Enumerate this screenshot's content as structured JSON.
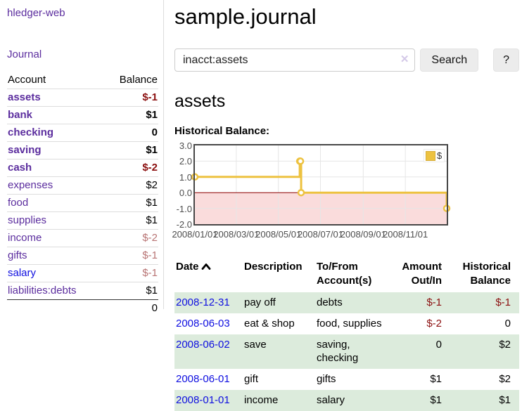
{
  "app": {
    "title": "hledger-web"
  },
  "sidebar": {
    "journal_link": "Journal",
    "accounts_table": {
      "headers": {
        "account": "Account",
        "balance": "Balance"
      },
      "rows": [
        {
          "account": "assets",
          "balance": "$-1"
        },
        {
          "account": "bank",
          "balance": "$1"
        },
        {
          "account": "checking",
          "balance": "0"
        },
        {
          "account": "saving",
          "balance": "$1"
        },
        {
          "account": "cash",
          "balance": "$-2"
        },
        {
          "account": "expenses",
          "balance": "$2"
        },
        {
          "account": "food",
          "balance": "$1"
        },
        {
          "account": "supplies",
          "balance": "$1"
        },
        {
          "account": "income",
          "balance": "$-2"
        },
        {
          "account": "gifts",
          "balance": "$-1"
        },
        {
          "account": "salary",
          "balance": "$-1"
        },
        {
          "account": "liabilities:debts",
          "balance": "$1"
        }
      ],
      "total": "0"
    }
  },
  "header": {
    "title": "sample.journal"
  },
  "search": {
    "query": "inacct:assets",
    "clear_icon": "✕",
    "button_label": "Search",
    "help_label": "?"
  },
  "account_page": {
    "title": "assets",
    "chart_title": "Historical Balance:"
  },
  "chart_data": {
    "type": "line",
    "title": "Historical Balance:",
    "series": [
      {
        "name": "$",
        "color": "#edc240",
        "step": true,
        "points": [
          [
            "2008-01-01",
            1
          ],
          [
            "2008-06-01",
            2
          ],
          [
            "2008-06-02",
            2
          ],
          [
            "2008-06-03",
            0
          ],
          [
            "2008-12-31",
            -1
          ]
        ]
      }
    ],
    "xlim": [
      "2008-01-01",
      "2008-12-31"
    ],
    "ylim": [
      -2,
      3
    ],
    "x_tick_labels": [
      "2008/01/01",
      "2008/03/01",
      "2008/05/01",
      "2008/07/01",
      "2008/09/01",
      "2008/11/01"
    ],
    "y_tick_labels": [
      "3.0",
      "2.0",
      "1.0",
      "0.0",
      "-1.0",
      "-2.0"
    ],
    "legend": {
      "position": "top-right",
      "items": [
        {
          "label": "$",
          "color": "#edc240"
        }
      ]
    },
    "grid": true,
    "grid_color": "#e6e6e6",
    "border_color": "#474747",
    "zero_line_color": "#8b0000",
    "negative_region_color": "#fadcdc"
  },
  "register_table": {
    "headers": {
      "date": "Date",
      "description": "Description",
      "accounts": "To/From Account(s)",
      "amount": "Amount Out/In",
      "balance": "Historical Balance"
    },
    "rows": [
      {
        "date": "2008-12-31",
        "description": "pay off",
        "accounts": "debts",
        "amount": "$-1",
        "balance": "$-1"
      },
      {
        "date": "2008-06-03",
        "description": "eat & shop",
        "accounts": "food, supplies",
        "amount": "$-2",
        "balance": "0"
      },
      {
        "date": "2008-06-02",
        "description": "save",
        "accounts": "saving, checking",
        "amount": "0",
        "balance": "$2"
      },
      {
        "date": "2008-06-01",
        "description": "gift",
        "accounts": "gifts",
        "amount": "$1",
        "balance": "$2"
      },
      {
        "date": "2008-01-01",
        "description": "income",
        "accounts": "salary",
        "amount": "$1",
        "balance": "$1"
      }
    ]
  },
  "colors": {
    "accent_purple": "#5b2d9e",
    "link_blue": "#0f0fe0",
    "negative": "#8b0f0f",
    "negative_muted": "#b87474",
    "row_green": "#dcebdc",
    "chart_line": "#edc240"
  }
}
